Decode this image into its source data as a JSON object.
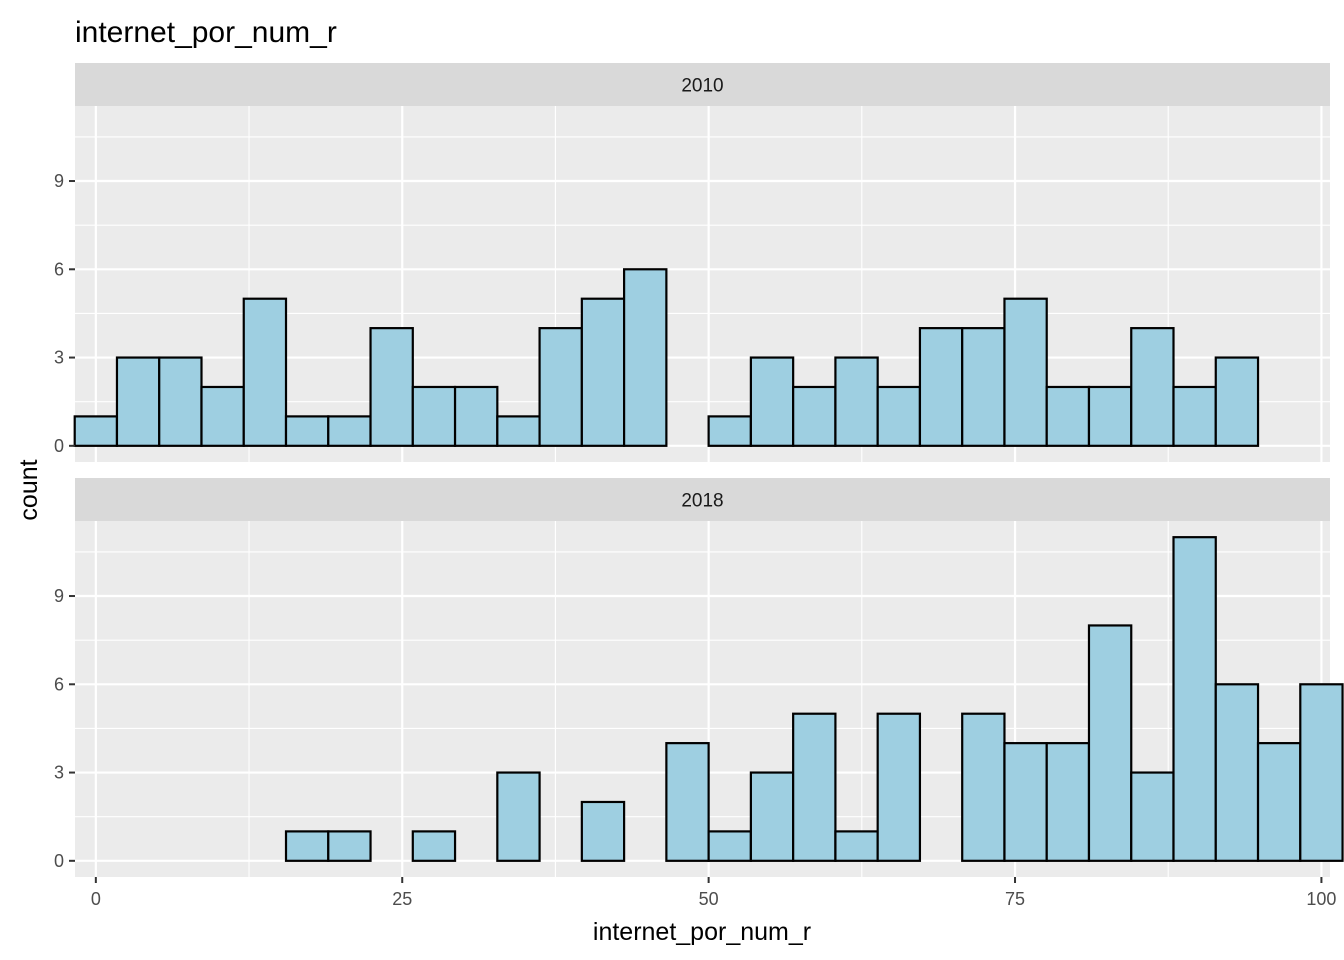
{
  "chart_data": {
    "type": "bar",
    "title": "internet_por_num_r",
    "xlabel": "internet_por_num_r",
    "ylabel": "count",
    "xlim": [
      -1.7,
      100.7
    ],
    "ylim": [
      -0.55,
      11.55
    ],
    "x_ticks": [
      0,
      25,
      50,
      75,
      100
    ],
    "x_tick_labels": [
      "0",
      "25",
      "50",
      "75",
      "100"
    ],
    "y_ticks": [
      0,
      3,
      6,
      9
    ],
    "y_tick_labels": [
      "0",
      "3",
      "6",
      "9"
    ],
    "grid": true,
    "bin_edges": [
      -1.724,
      1.724,
      5.172,
      8.621,
      12.069,
      15.517,
      18.966,
      22.414,
      25.862,
      29.31,
      32.759,
      36.207,
      39.655,
      43.103,
      46.552,
      50.0,
      53.448,
      56.897,
      60.345,
      63.793,
      67.241,
      70.69,
      74.138,
      77.586,
      81.034,
      84.483,
      87.931,
      91.379,
      94.828,
      98.276,
      101.724
    ],
    "fill_color": "#9ecfe1",
    "outline_color": "#000000",
    "panels": [
      {
        "strip_label": "2010",
        "counts": [
          1,
          3,
          3,
          2,
          5,
          1,
          1,
          4,
          2,
          2,
          1,
          4,
          5,
          6,
          0,
          1,
          3,
          2,
          3,
          2,
          4,
          4,
          5,
          2,
          2,
          4,
          2,
          3,
          0,
          0
        ]
      },
      {
        "strip_label": "2018",
        "counts": [
          0,
          0,
          0,
          0,
          0,
          1,
          1,
          0,
          1,
          0,
          3,
          0,
          2,
          0,
          4,
          1,
          3,
          5,
          1,
          5,
          0,
          5,
          4,
          4,
          8,
          3,
          11,
          6,
          4,
          6
        ]
      }
    ]
  }
}
